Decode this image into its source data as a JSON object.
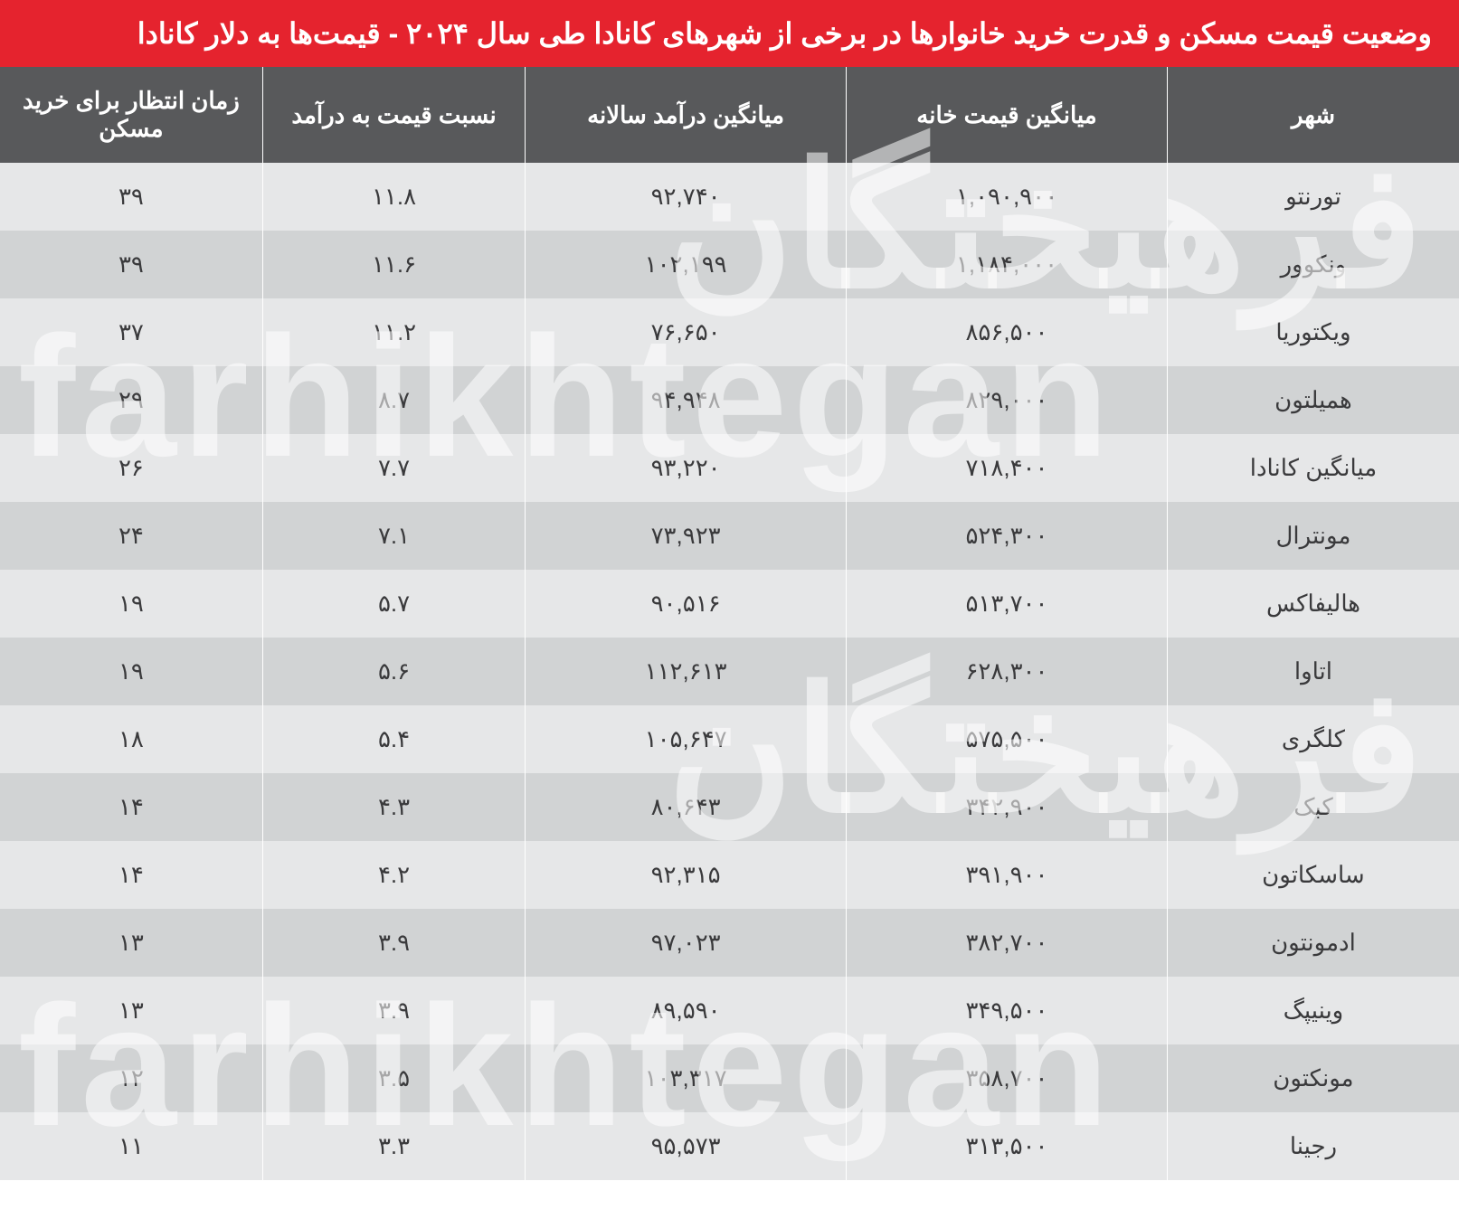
{
  "title": "وضعیت قیمت مسکن و قدرت خرید خانوارها در برخی از شهرهای کانادا طی سال ۲۰۲۴ - قیمت‌ها به دلار کانادا",
  "columns": {
    "city": "شهر",
    "price": "میانگین قیمت خانه",
    "income": "میانگین درآمد سالانه",
    "ratio": "نسبت قیمت به درآمد",
    "wait": "زمان انتظار برای خرید مسکن"
  },
  "rows": [
    {
      "city": "تورنتو",
      "price": "۱,۰۹۰,۹۰۰",
      "income": "۹۲,۷۴۰",
      "ratio": "۱۱.۸",
      "wait": "۳۹"
    },
    {
      "city": "ونکوور",
      "price": "۱,۱۸۴,۰۰۰",
      "income": "۱۰۲,۱۹۹",
      "ratio": "۱۱.۶",
      "wait": "۳۹"
    },
    {
      "city": "ویکتوریا",
      "price": "۸۵۶,۵۰۰",
      "income": "۷۶,۶۵۰",
      "ratio": "۱۱.۲",
      "wait": "۳۷"
    },
    {
      "city": "همیلتون",
      "price": "۸۲۹,۰۰۰",
      "income": "۹۴,۹۴۸",
      "ratio": "۸.۷",
      "wait": "۲۹"
    },
    {
      "city": "میانگین کانادا",
      "price": "۷۱۸,۴۰۰",
      "income": "۹۳,۲۲۰",
      "ratio": "۷.۷",
      "wait": "۲۶"
    },
    {
      "city": "مونترال",
      "price": "۵۲۴,۳۰۰",
      "income": "۷۳,۹۲۳",
      "ratio": "۷.۱",
      "wait": "۲۴"
    },
    {
      "city": "هالیفاکس",
      "price": "۵۱۳,۷۰۰",
      "income": "۹۰,۵۱۶",
      "ratio": "۵.۷",
      "wait": "۱۹"
    },
    {
      "city": "اتاوا",
      "price": "۶۲۸,۳۰۰",
      "income": "۱۱۲,۶۱۳",
      "ratio": "۵.۶",
      "wait": "۱۹"
    },
    {
      "city": "کلگری",
      "price": "۵۷۵,۵۰۰",
      "income": "۱۰۵,۶۴۷",
      "ratio": "۵.۴",
      "wait": "۱۸"
    },
    {
      "city": "کبک",
      "price": "۳۴۲,۹۰۰",
      "income": "۸۰,۶۴۳",
      "ratio": "۴.۳",
      "wait": "۱۴"
    },
    {
      "city": "ساسکاتون",
      "price": "۳۹۱,۹۰۰",
      "income": "۹۲,۳۱۵",
      "ratio": "۴.۲",
      "wait": "۱۴"
    },
    {
      "city": "ادمونتون",
      "price": "۳۸۲,۷۰۰",
      "income": "۹۷,۰۲۳",
      "ratio": "۳.۹",
      "wait": "۱۳"
    },
    {
      "city": "وینیپگ",
      "price": "۳۴۹,۵۰۰",
      "income": "۸۹,۵۹۰",
      "ratio": "۳.۹",
      "wait": "۱۳"
    },
    {
      "city": "مونکتون",
      "price": "۳۵۸,۷۰۰",
      "income": "۱۰۳,۳۱۷",
      "ratio": "۳.۵",
      "wait": "۱۲"
    },
    {
      "city": "رجینا",
      "price": "۳۱۳,۵۰۰",
      "income": "۹۵,۵۷۳",
      "ratio": "۳.۳",
      "wait": "۱۱"
    }
  ],
  "watermark_persian": "فرهیختگان",
  "watermark_latin": "farhikhtegan",
  "styling": {
    "title_bg": "#e5232e",
    "title_color": "#ffffff",
    "header_bg": "#58595b",
    "header_color": "#ffffff",
    "row_light_bg": "#e6e7e8",
    "row_dark_bg": "#d1d3d4",
    "text_color": "#3a3a3c",
    "title_fontsize": 32,
    "header_fontsize": 26,
    "cell_fontsize": 26,
    "watermark_color": "rgba(255,255,255,0.55)",
    "watermark_fontsize": 190
  }
}
